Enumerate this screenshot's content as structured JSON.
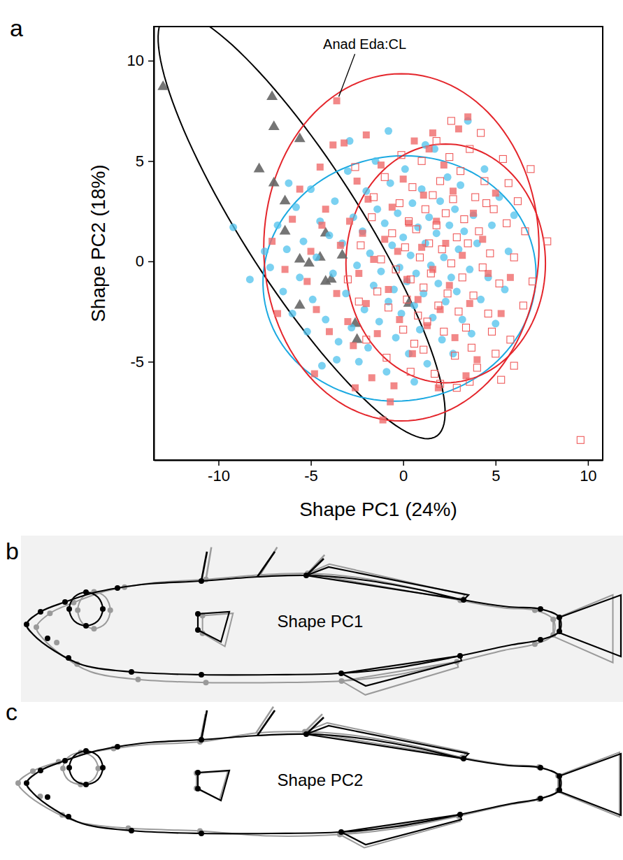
{
  "chart_data": {
    "type": "scatter",
    "xlabel": "Shape PC1 (24%)",
    "ylabel": "Shape PC2 (18%)",
    "xlim": [
      -13.5,
      10.8
    ],
    "ylim": [
      -9.9,
      11.7
    ],
    "xticks": [
      -10,
      -5,
      0,
      5,
      10
    ],
    "yticks": [
      -5,
      0,
      5,
      10
    ],
    "grid": false,
    "annotations": [
      {
        "text": "Anad Eda:CL",
        "x": -3.6,
        "y": 8.0
      }
    ],
    "series": [
      {
        "color": "#666666",
        "marker": "triangle",
        "x": [
          -13.0,
          -7.1,
          -7.0,
          -5.6,
          -7.8,
          -7.0,
          -6.4,
          -6.4,
          -4.2,
          -4.5,
          -5.6,
          -3.3,
          -4.2,
          -5.6,
          -3.9,
          -2.6,
          0.3,
          -2.5,
          -5.1
        ],
        "values": [
          8.7,
          8.2,
          6.7,
          6.1,
          4.6,
          3.9,
          3.0,
          1.5,
          1.4,
          0.2,
          0.1,
          0.3,
          -1.0,
          -2.2,
          -0.9,
          -3.1,
          -2.1,
          -3.9,
          -0.1
        ],
        "ellipse": {
          "color": "#000000",
          "center": [
            -5.5,
            1.8
          ],
          "radii": [
            12.8,
            3.1
          ],
          "angle": 125
        }
      },
      {
        "color": "#4fc1ec",
        "marker": "circle",
        "x": [
          -9.2,
          -7.5,
          -7.2,
          -6.8,
          -6.5,
          -6.3,
          -6.0,
          -5.8,
          -5.6,
          -5.4,
          -5.2,
          -5.0,
          -4.9,
          -4.7,
          -4.5,
          -4.4,
          -4.2,
          -4.0,
          -3.8,
          -3.7,
          -3.5,
          -3.3,
          -3.1,
          -3.0,
          -2.8,
          -2.7,
          -2.5,
          -2.4,
          -2.2,
          -2.1,
          -2.0,
          -1.9,
          -1.8,
          -1.6,
          -1.5,
          -1.4,
          -1.3,
          -1.2,
          -1.0,
          -0.9,
          -0.8,
          -0.7,
          -0.6,
          -0.5,
          -0.4,
          -0.3,
          -0.2,
          -0.1,
          0,
          0.1,
          0.2,
          0.3,
          0.4,
          0.5,
          0.6,
          0.7,
          0.8,
          0.9,
          1.0,
          1.1,
          1.2,
          1.3,
          1.4,
          1.5,
          1.6,
          1.7,
          1.8,
          1.9,
          2.0,
          2.1,
          2.2,
          2.3,
          2.4,
          2.5,
          2.6,
          2.7,
          2.8,
          2.9,
          3.0,
          3.1,
          3.2,
          3.3,
          3.5,
          3.6,
          3.7,
          3.8,
          4.0,
          4.2,
          4.4,
          4.6,
          4.8,
          5.0,
          5.2,
          5.5,
          5.7,
          6.0,
          -2.9,
          -0.8,
          1.2,
          -6.2,
          -8.3,
          -3.6,
          0.6
        ],
        "values": [
          1.7,
          0.5,
          -0.3,
          1.8,
          -1.5,
          0.6,
          -2.6,
          2.7,
          -0.8,
          1.0,
          -3.5,
          3.6,
          -1.9,
          0.2,
          2.0,
          -5.2,
          -2.9,
          1.3,
          -0.6,
          3.0,
          -4.0,
          0.9,
          -1.6,
          4.5,
          -3.3,
          2.2,
          -0.2,
          -5.0,
          1.5,
          -2.4,
          3.5,
          -4.3,
          0.4,
          -1.2,
          5.0,
          2.6,
          -3.0,
          -0.5,
          1.9,
          -5.5,
          -2.0,
          3.9,
          0.8,
          -1.4,
          -3.8,
          2.4,
          -0.3,
          -2.6,
          1.2,
          4.6,
          -1.0,
          -4.6,
          0.3,
          2.9,
          -2.2,
          -0.6,
          1.7,
          -3.4,
          3.6,
          -1.6,
          0.9,
          -5.1,
          2.2,
          -0.2,
          -2.8,
          5.6,
          1.4,
          -1.1,
          3.0,
          -3.9,
          0.2,
          -2.0,
          4.2,
          1.8,
          -0.8,
          -4.6,
          2.6,
          -1.5,
          0.6,
          3.8,
          -2.9,
          1.5,
          7.0,
          -0.4,
          -3.6,
          2.3,
          0.9,
          -1.9,
          4.6,
          -0.8,
          1.8,
          -3.1,
          3.2,
          -1.4,
          0.5,
          2.3,
          6.0,
          6.5,
          5.8,
          3.9,
          -0.9,
          -4.9,
          -6.0
        ],
        "ellipse": {
          "color": "#1ba9e1",
          "center": [
            -0.2,
            -0.85
          ],
          "radii": [
            7.4,
            6.1
          ],
          "angle": 5
        }
      },
      {
        "color": "#ef6a6a",
        "marker": "square",
        "x": [
          -3.6,
          -7.1,
          -6.4,
          -6.0,
          -5.6,
          -5.2,
          -5.0,
          -4.7,
          -4.4,
          -4.2,
          -4.0,
          -3.8,
          -3.6,
          -3.4,
          -3.2,
          -3.0,
          -2.9,
          -2.7,
          -2.5,
          -2.4,
          -2.2,
          -2.0,
          -1.9,
          -1.7,
          -1.6,
          -1.4,
          -1.2,
          -1.1,
          -1.0,
          -0.8,
          -0.6,
          -0.5,
          -0.3,
          -0.2,
          0,
          0.2,
          0.3,
          0.5,
          0.6,
          0.8,
          1.0,
          1.1,
          1.3,
          1.4,
          1.6,
          1.8,
          1.9,
          2.0,
          2.2,
          2.3,
          2.5,
          2.7,
          2.8,
          3.0,
          3.2,
          3.5,
          3.6,
          3.8,
          4.0,
          4.3,
          4.6,
          5.0,
          5.3,
          5.8,
          -4.8,
          -6.8,
          -2.0,
          -4.5,
          1.6,
          -0.7,
          3.4,
          -2.6
        ],
        "values": [
          8.0,
          1.0,
          -0.4,
          2.1,
          3.6,
          -1.0,
          0.5,
          -2.4,
          1.8,
          2.6,
          -3.5,
          5.8,
          -1.6,
          0.8,
          5.9,
          -3.0,
          2.0,
          -4.2,
          4.0,
          -0.6,
          1.4,
          -2.1,
          3.1,
          -5.8,
          0.1,
          -3.6,
          4.8,
          -7.9,
          1.1,
          -1.4,
          2.7,
          -6.2,
          0.5,
          -2.9,
          4.1,
          -0.9,
          1.9,
          -4.6,
          6.0,
          -1.9,
          0.7,
          3.3,
          -3.2,
          5.6,
          -0.4,
          2.0,
          -6.3,
          -2.4,
          4.8,
          0.9,
          -1.2,
          3.5,
          -3.8,
          6.6,
          0.3,
          7.2,
          -2.1,
          2.4,
          -4.9,
          1.1,
          -0.6,
          3.4,
          -2.6,
          -0.8,
          -5.6,
          -2.6,
          6.3,
          4.7,
          6.4,
          -7.0,
          -5.7,
          -6.3
        ],
        "ellipse": {
          "color": "#e4252b",
          "center": [
            -0.1,
            0.7
          ],
          "radii": [
            7.45,
            8.65
          ],
          "angle": 0
        }
      },
      {
        "color": "#ef5a5a",
        "marker": "open-square",
        "x": [
          9.6,
          7.8,
          6.9,
          6.5,
          6.2,
          6.0,
          5.8,
          5.6,
          5.4,
          5.2,
          5.0,
          4.9,
          4.7,
          4.6,
          4.4,
          4.3,
          4.1,
          4.0,
          3.9,
          3.8,
          3.6,
          3.5,
          3.4,
          3.3,
          3.2,
          3.1,
          3.0,
          2.9,
          2.8,
          2.7,
          2.6,
          2.5,
          2.4,
          2.3,
          2.2,
          2.1,
          2.0,
          1.9,
          1.8,
          1.7,
          1.6,
          1.5,
          1.4,
          1.3,
          1.2,
          1.1,
          1.0,
          0.9,
          0.8,
          0.7,
          0.6,
          0.5,
          0.4,
          0.3,
          0.2,
          0.1,
          0,
          -0.2,
          -0.4,
          -0.6,
          -0.8,
          -1.0,
          -1.2,
          -1.4,
          -1.7,
          -2.0,
          -2.3,
          -2.6,
          -3.0,
          6.0,
          5.3,
          4.2,
          2.6,
          1.8,
          0.4,
          -0.9,
          3.6,
          7.0,
          6.6,
          -1.6,
          2.9,
          4.8,
          5.7,
          -0.1,
          1.1,
          3.7,
          4.5,
          2.0,
          -2.4
        ],
        "values": [
          -8.9,
          1.0,
          4.6,
          -2.2,
          3.0,
          0.2,
          -3.9,
          1.9,
          5.1,
          -1.1,
          -4.6,
          2.6,
          0.4,
          -2.6,
          4.0,
          -0.3,
          1.5,
          -5.3,
          3.2,
          -1.7,
          5.6,
          0.9,
          -3.3,
          2.1,
          -0.8,
          4.5,
          -2.5,
          1.2,
          -4.7,
          3.1,
          -0.1,
          5.2,
          -1.6,
          2.4,
          -3.5,
          0.6,
          4.0,
          -2.2,
          1.8,
          -5.6,
          3.3,
          -0.6,
          0.9,
          -3.0,
          2.6,
          -1.3,
          5.0,
          0.2,
          -2.7,
          1.6,
          -4.1,
          3.7,
          -0.9,
          2.0,
          -1.9,
          0.7,
          -3.4,
          2.9,
          -0.4,
          1.4,
          -2.3,
          4.2,
          0.1,
          -1.5,
          2.2,
          -3.9,
          0.8,
          4.7,
          -0.9,
          -5.2,
          -5.9,
          6.4,
          7.0,
          6.0,
          -5.5,
          -4.8,
          -6.0,
          -1.0,
          1.5,
          3.2,
          -6.3,
          -3.5,
          3.9,
          5.3,
          -4.4,
          -4.3,
          2.9,
          -6.1,
          -2.0
        ],
        "ellipse": {
          "color": "#e4252b",
          "center": [
            2.3,
            -0.1
          ],
          "radii": [
            5.4,
            5.95
          ],
          "angle": 0
        }
      }
    ]
  },
  "panels": [
    {
      "letter": "a"
    },
    {
      "letter": "b",
      "label": "Shape PC1"
    },
    {
      "letter": "c",
      "label": "Shape PC2"
    }
  ]
}
